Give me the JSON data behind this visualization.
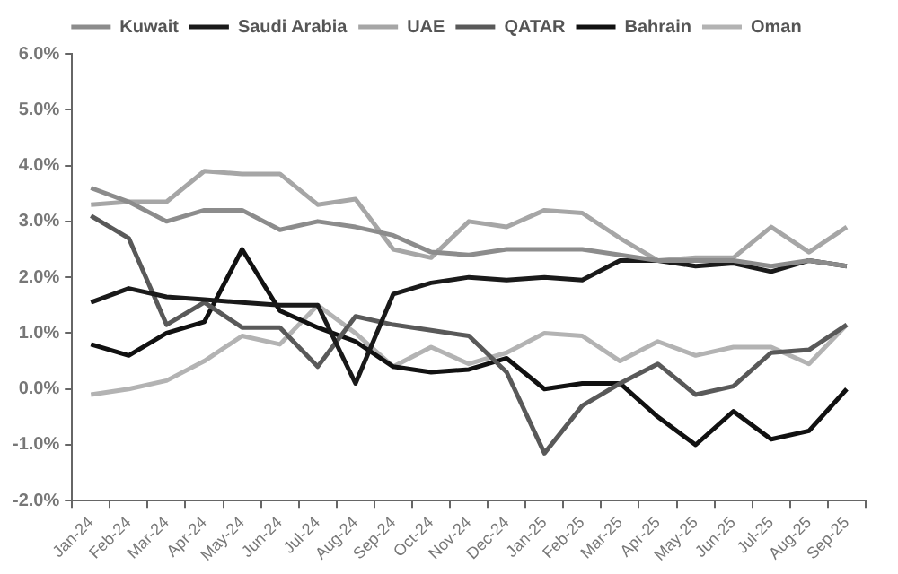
{
  "chart_data": {
    "type": "line",
    "categories": [
      "Jan-24",
      "Feb-24",
      "Mar-24",
      "Apr-24",
      "May-24",
      "Jun-24",
      "Jul-24",
      "Aug-24",
      "Sep-24",
      "Oct-24",
      "Nov-24",
      "Dec-24",
      "Jan-25",
      "Feb-25",
      "Mar-25",
      "Apr-25",
      "May-25",
      "Jun-25",
      "Jul-25",
      "Aug-25",
      "Sep-25"
    ],
    "series": [
      {
        "name": "Kuwait",
        "color": "#8c8c8c",
        "values": [
          3.6,
          3.35,
          3.0,
          3.2,
          3.2,
          2.85,
          3.0,
          2.9,
          2.75,
          2.45,
          2.4,
          2.5,
          2.5,
          2.5,
          2.4,
          2.3,
          2.3,
          2.3,
          2.2,
          2.3,
          2.2
        ]
      },
      {
        "name": "Saudi Arabia",
        "color": "#1a1a1a",
        "values": [
          1.55,
          1.8,
          1.65,
          1.6,
          1.55,
          1.5,
          1.5,
          0.1,
          1.7,
          1.9,
          2.0,
          1.95,
          2.0,
          1.95,
          2.3,
          2.3,
          2.2,
          2.25,
          2.1,
          2.3,
          2.2
        ]
      },
      {
        "name": "UAE",
        "color": "#a6a6a6",
        "values": [
          3.3,
          3.35,
          3.35,
          3.9,
          3.85,
          3.85,
          3.3,
          3.4,
          2.5,
          2.35,
          3.0,
          2.9,
          3.2,
          3.15,
          2.7,
          2.3,
          2.35,
          2.35,
          2.9,
          2.45,
          2.9
        ]
      },
      {
        "name": "QATAR",
        "color": "#595959",
        "values": [
          3.1,
          2.7,
          1.15,
          1.55,
          1.1,
          1.1,
          0.4,
          1.3,
          1.15,
          1.05,
          0.95,
          0.3,
          -1.15,
          -0.3,
          0.1,
          0.45,
          -0.1,
          0.05,
          0.65,
          0.7,
          1.15
        ]
      },
      {
        "name": "Bahrain",
        "color": "#111111",
        "values": [
          0.8,
          0.6,
          1.0,
          1.2,
          2.5,
          1.4,
          1.1,
          0.85,
          0.4,
          0.3,
          0.35,
          0.55,
          0.0,
          0.1,
          0.1,
          -0.5,
          -1.0,
          -0.4,
          -0.9,
          -0.75,
          0.0
        ]
      },
      {
        "name": "Oman",
        "color": "#b3b3b3",
        "values": [
          -0.1,
          0.0,
          0.15,
          0.5,
          0.95,
          0.8,
          1.5,
          1.0,
          0.4,
          0.75,
          0.45,
          0.65,
          1.0,
          0.95,
          0.5,
          0.85,
          0.6,
          0.75,
          0.75,
          0.45,
          1.15
        ]
      }
    ],
    "ylim": [
      -2,
      6
    ],
    "yticks": [
      {
        "value": -2,
        "label": "-2.0%"
      },
      {
        "value": -1,
        "label": "-1.0%"
      },
      {
        "value": 0,
        "label": "0.0%"
      },
      {
        "value": 1,
        "label": "1.0%"
      },
      {
        "value": 2,
        "label": "2.0%"
      },
      {
        "value": 3,
        "label": "3.0%"
      },
      {
        "value": 4,
        "label": "4.0%"
      },
      {
        "value": 5,
        "label": "5.0%"
      },
      {
        "value": 6,
        "label": "6.0%"
      }
    ],
    "grid": false,
    "legend": "top",
    "marker": "none",
    "line_style": "solid"
  }
}
